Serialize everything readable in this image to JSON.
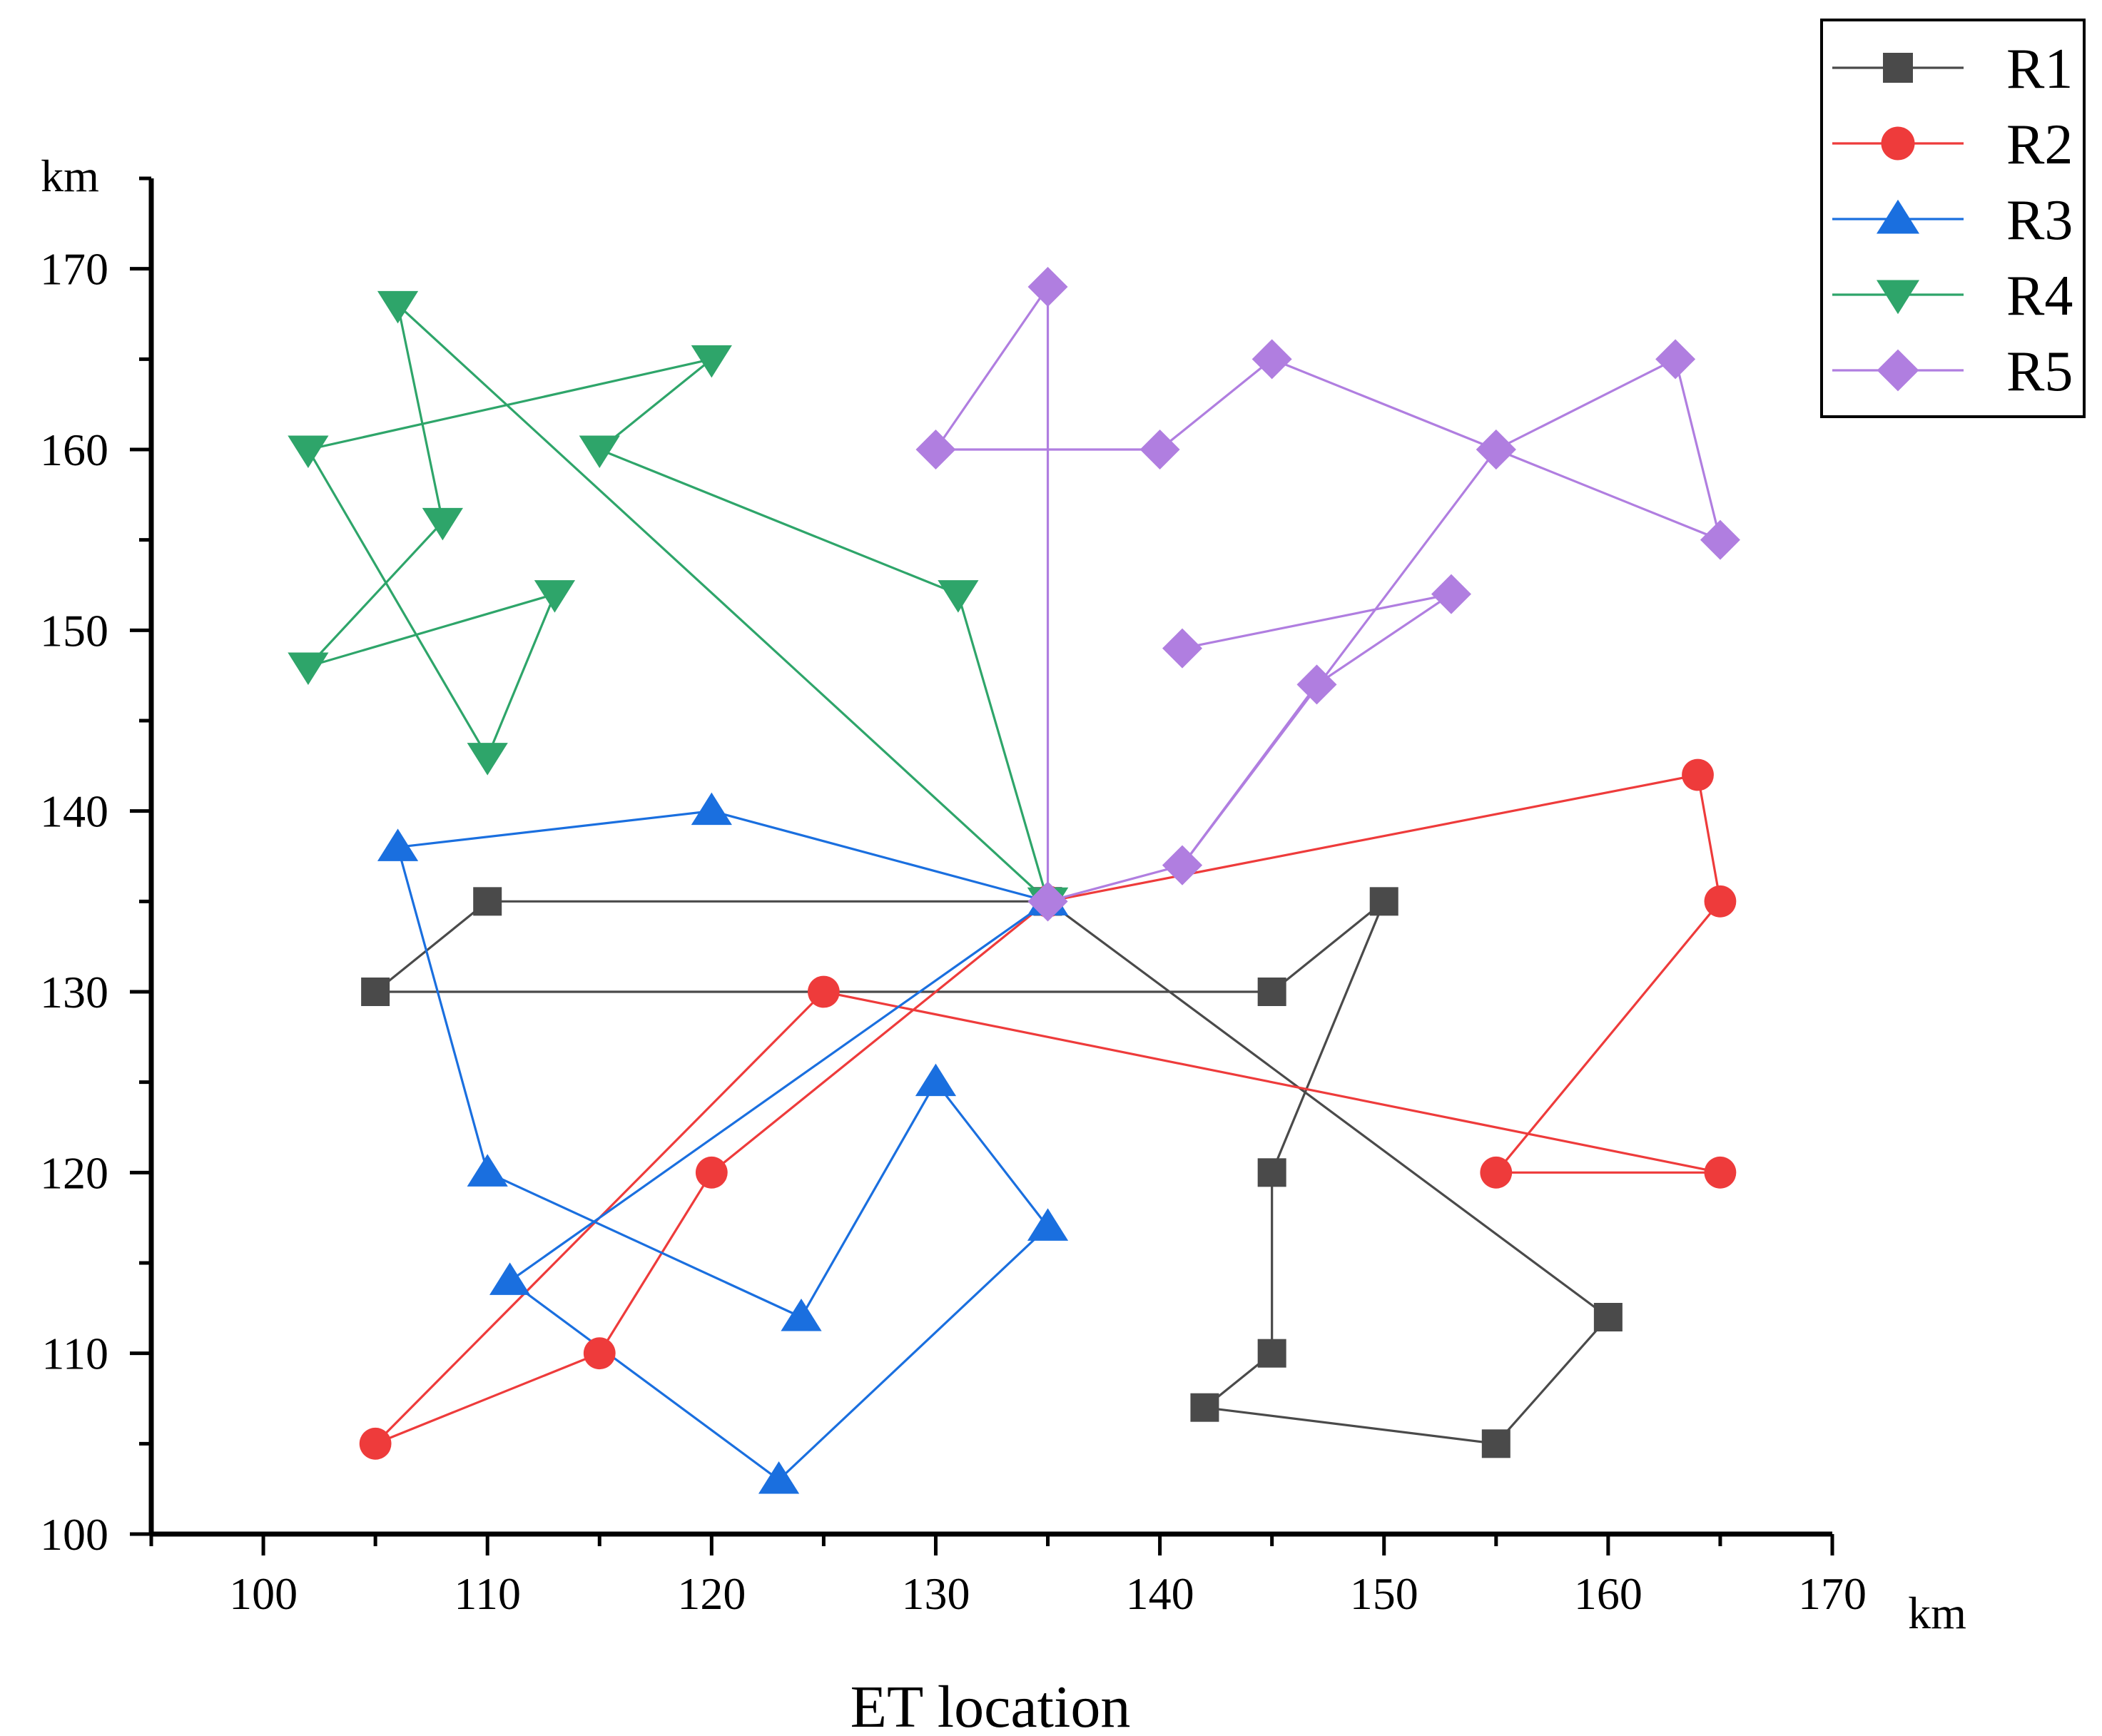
{
  "chart_data": {
    "type": "line",
    "title": "",
    "xlabel": "ET location",
    "ylabel": "",
    "x_unit": "km",
    "y_unit": "km",
    "xlim": [
      95,
      170
    ],
    "ylim": [
      100,
      175
    ],
    "xticks": [
      100,
      110,
      120,
      130,
      140,
      150,
      160,
      170
    ],
    "yticks": [
      100,
      110,
      120,
      130,
      140,
      150,
      160,
      170
    ],
    "grid": false,
    "legend_position": "top-right",
    "series": [
      {
        "name": "R1",
        "color": "#4a4a4a",
        "marker": "square",
        "points": [
          [
            135,
            135
          ],
          [
            110,
            135
          ],
          [
            105,
            130
          ],
          [
            145,
            130
          ],
          [
            150,
            135
          ],
          [
            145,
            120
          ],
          [
            145,
            110
          ],
          [
            142,
            107
          ],
          [
            155,
            105
          ],
          [
            160,
            112
          ],
          [
            135,
            135
          ]
        ]
      },
      {
        "name": "R2",
        "color": "#ee3b3b",
        "marker": "circle",
        "points": [
          [
            135,
            135
          ],
          [
            164,
            142
          ],
          [
            165,
            135
          ],
          [
            155,
            120
          ],
          [
            165,
            120
          ],
          [
            125,
            130
          ],
          [
            105,
            105
          ],
          [
            115,
            110
          ],
          [
            120,
            120
          ],
          [
            135,
            135
          ]
        ]
      },
      {
        "name": "R3",
        "color": "#1a6fdf",
        "marker": "triangle-up",
        "points": [
          [
            135,
            135
          ],
          [
            120,
            140
          ],
          [
            106,
            138
          ],
          [
            110,
            120
          ],
          [
            124,
            112
          ],
          [
            130,
            125
          ],
          [
            135,
            117
          ],
          [
            123,
            103
          ],
          [
            111,
            114
          ],
          [
            135,
            135
          ]
        ]
      },
      {
        "name": "R4",
        "color": "#2ea56a",
        "marker": "triangle-down",
        "points": [
          [
            135,
            135
          ],
          [
            131,
            152
          ],
          [
            115,
            160
          ],
          [
            120,
            165
          ],
          [
            102,
            160
          ],
          [
            110,
            143
          ],
          [
            113,
            152
          ],
          [
            102,
            148
          ],
          [
            108,
            156
          ],
          [
            106,
            168
          ],
          [
            135,
            135
          ]
        ]
      },
      {
        "name": "R5",
        "color": "#b07ee0",
        "marker": "diamond",
        "points": [
          [
            135,
            135
          ],
          [
            141,
            137
          ],
          [
            155,
            160
          ],
          [
            163,
            165
          ],
          [
            165,
            155
          ],
          [
            155,
            160
          ],
          [
            145,
            165
          ],
          [
            140,
            160
          ],
          [
            130,
            160
          ],
          [
            135,
            169
          ],
          [
            135,
            135
          ],
          [
            141,
            137
          ],
          [
            147,
            147
          ],
          [
            153,
            152
          ],
          [
            141,
            149
          ]
        ]
      }
    ]
  }
}
